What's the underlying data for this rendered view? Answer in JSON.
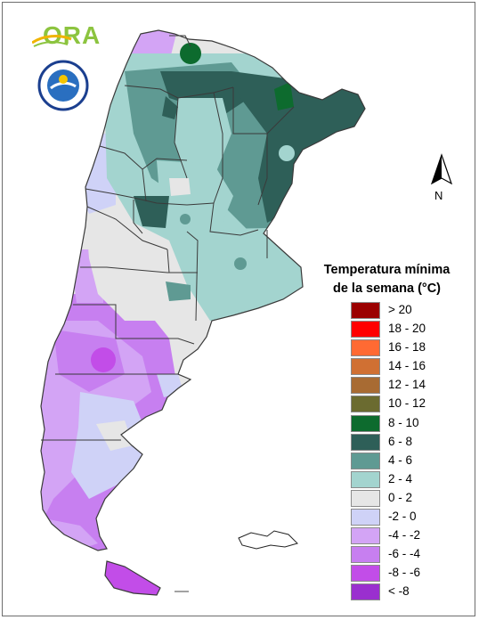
{
  "map": {
    "region": "Argentina",
    "variable": "weekly minimum temperature",
    "colors": {
      "ocean": "#ffffff",
      "border": "#3a3a3a"
    }
  },
  "logos": {
    "ora_text": "ORA",
    "seal_icon": "ministry-seal-icon"
  },
  "north_arrow": {
    "label": "N"
  },
  "legend": {
    "title_line1": "Temperatura mínima",
    "title_line2": "de la semana (°C)",
    "items": [
      {
        "label": "> 20",
        "color": "#9b0000"
      },
      {
        "label": "18 - 20",
        "color": "#ff0000"
      },
      {
        "label": "16 - 18",
        "color": "#ff6a33"
      },
      {
        "label": "14 - 16",
        "color": "#d07033"
      },
      {
        "label": "12 - 14",
        "color": "#a86b33"
      },
      {
        "label": "10 - 12",
        "color": "#6b6b30"
      },
      {
        "label": "8 - 10",
        "color": "#0d6b2e"
      },
      {
        "label": "6 - 8",
        "color": "#2e5f58"
      },
      {
        "label": "4 - 6",
        "color": "#5f9a93"
      },
      {
        "label": "2 - 4",
        "color": "#a3d4cf"
      },
      {
        "label": "0 - 2",
        "color": "#e6e6e6"
      },
      {
        "label": "-2 - 0",
        "color": "#cfd2f7"
      },
      {
        "label": "-4 - -2",
        "color": "#d3a4f5"
      },
      {
        "label": "-6 - -4",
        "color": "#c77ff0"
      },
      {
        "label": "-8 - -6",
        "color": "#c24de8"
      },
      {
        "label": "< -8",
        "color": "#9a2fcf"
      }
    ]
  }
}
